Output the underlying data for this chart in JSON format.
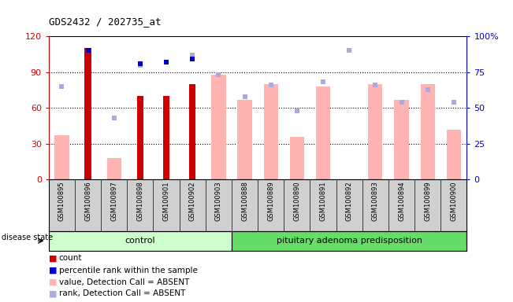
{
  "title": "GDS2432 / 202735_at",
  "samples": [
    "GSM100895",
    "GSM100896",
    "GSM100897",
    "GSM100898",
    "GSM100901",
    "GSM100902",
    "GSM100903",
    "GSM100888",
    "GSM100889",
    "GSM100890",
    "GSM100891",
    "GSM100892",
    "GSM100893",
    "GSM100894",
    "GSM100899",
    "GSM100900"
  ],
  "group_labels": [
    "control",
    "pituitary adenoma predisposition"
  ],
  "group_sizes": [
    7,
    9
  ],
  "left_ylim": [
    0,
    120
  ],
  "right_ylim": [
    0,
    100
  ],
  "left_yticks": [
    0,
    30,
    60,
    90,
    120
  ],
  "right_yticks": [
    0,
    25,
    50,
    75,
    100
  ],
  "right_yticklabels": [
    "0",
    "25",
    "50",
    "75",
    "100%"
  ],
  "count_values": [
    0,
    110,
    0,
    70,
    70,
    80,
    0,
    0,
    0,
    0,
    0,
    0,
    0,
    0,
    0,
    0
  ],
  "value_absent": [
    37,
    0,
    18,
    0,
    0,
    0,
    88,
    67,
    80,
    36,
    78,
    0,
    80,
    67,
    80,
    42
  ],
  "rank_absent": [
    65,
    0,
    43,
    80,
    82,
    87,
    73,
    58,
    66,
    48,
    68,
    90,
    66,
    54,
    63,
    54
  ],
  "percentile_rank": [
    0,
    90,
    0,
    81,
    82,
    84,
    0,
    0,
    0,
    0,
    0,
    0,
    0,
    0,
    0,
    0
  ],
  "count_color": "#cc0000",
  "value_absent_color": "#ffb3b3",
  "rank_absent_color": "#aaaadd",
  "percentile_rank_color": "#0000cc",
  "bg_color_control": "#ccffcc",
  "bg_color_pituitary": "#66dd66",
  "sample_area_bg": "#d0d0d0",
  "plot_bg": "#ffffff",
  "grid_color": "black"
}
